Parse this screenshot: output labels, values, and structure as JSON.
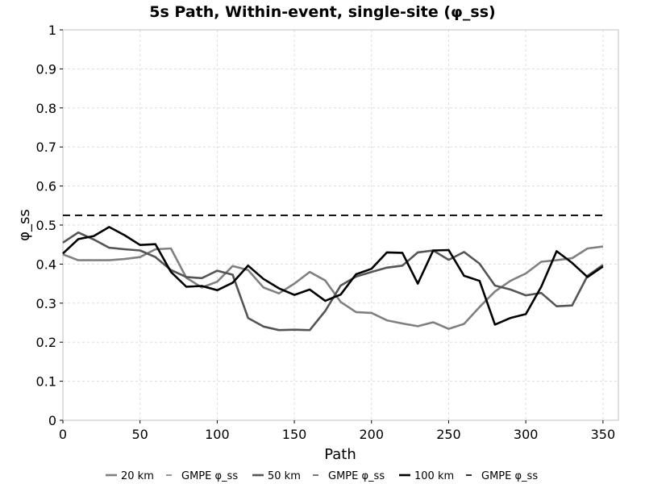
{
  "chart_data": {
    "type": "line",
    "title": "5s Path, Within-event, single-site (φ_ss)",
    "xlabel": "Path",
    "ylabel": "φ_ss",
    "xlim": [
      0,
      360
    ],
    "ylim": [
      0,
      1
    ],
    "xticks": [
      "0",
      "50",
      "100",
      "150",
      "200",
      "250",
      "300",
      "350"
    ],
    "yticks": [
      "0",
      "0.1",
      "0.2",
      "0.3",
      "0.4",
      "0.5",
      "0.6",
      "0.7",
      "0.8",
      "0.9",
      "1"
    ],
    "grid": true,
    "legend_position": "bottom",
    "x": [
      0,
      10,
      20,
      30,
      40,
      50,
      60,
      70,
      80,
      90,
      100,
      110,
      120,
      130,
      140,
      150,
      160,
      170,
      180,
      190,
      200,
      210,
      220,
      230,
      240,
      250,
      260,
      270,
      280,
      290,
      300,
      310,
      320,
      330,
      340,
      350
    ],
    "series": [
      {
        "name": "20 km",
        "color": "#808080",
        "style": "solid",
        "values": [
          0.425,
          0.41,
          0.41,
          0.41,
          0.413,
          0.418,
          0.438,
          0.44,
          0.365,
          0.34,
          0.355,
          0.395,
          0.385,
          0.34,
          0.325,
          0.35,
          0.38,
          0.358,
          0.303,
          0.277,
          0.275,
          0.256,
          0.248,
          0.241,
          0.251,
          0.234,
          0.247,
          0.29,
          0.33,
          0.357,
          0.376,
          0.406,
          0.41,
          0.415,
          0.44,
          0.445
        ]
      },
      {
        "name": "GMPE φ_ss",
        "color": "#808080",
        "style": "dashed",
        "values": [
          0.525,
          0.525,
          0.525,
          0.525,
          0.525,
          0.525,
          0.525,
          0.525,
          0.525,
          0.525,
          0.525,
          0.525,
          0.525,
          0.525,
          0.525,
          0.525,
          0.525,
          0.525,
          0.525,
          0.525,
          0.525,
          0.525,
          0.525,
          0.525,
          0.525,
          0.525,
          0.525,
          0.525,
          0.525,
          0.525,
          0.525,
          0.525,
          0.525,
          0.525,
          0.525,
          0.525
        ]
      },
      {
        "name": "50 km",
        "color": "#555555",
        "style": "solid",
        "values": [
          0.455,
          0.481,
          0.463,
          0.442,
          0.438,
          0.435,
          0.418,
          0.385,
          0.367,
          0.364,
          0.383,
          0.373,
          0.262,
          0.24,
          0.231,
          0.232,
          0.231,
          0.28,
          0.345,
          0.368,
          0.38,
          0.391,
          0.396,
          0.43,
          0.435,
          0.411,
          0.431,
          0.401,
          0.345,
          0.335,
          0.32,
          0.326,
          0.292,
          0.294,
          0.37,
          0.398
        ]
      },
      {
        "name": "GMPE φ_ss",
        "color": "#555555",
        "style": "dashed",
        "values": [
          0.525,
          0.525,
          0.525,
          0.525,
          0.525,
          0.525,
          0.525,
          0.525,
          0.525,
          0.525,
          0.525,
          0.525,
          0.525,
          0.525,
          0.525,
          0.525,
          0.525,
          0.525,
          0.525,
          0.525,
          0.525,
          0.525,
          0.525,
          0.525,
          0.525,
          0.525,
          0.525,
          0.525,
          0.525,
          0.525,
          0.525,
          0.525,
          0.525,
          0.525,
          0.525,
          0.525
        ]
      },
      {
        "name": "100 km",
        "color": "#000000",
        "style": "solid",
        "values": [
          0.427,
          0.464,
          0.472,
          0.495,
          0.474,
          0.449,
          0.451,
          0.38,
          0.342,
          0.344,
          0.333,
          0.352,
          0.396,
          0.362,
          0.338,
          0.321,
          0.335,
          0.306,
          0.322,
          0.374,
          0.388,
          0.43,
          0.429,
          0.35,
          0.435,
          0.436,
          0.37,
          0.357,
          0.245,
          0.262,
          0.272,
          0.342,
          0.433,
          0.403,
          0.367,
          0.394
        ]
      },
      {
        "name": "GMPE φ_ss",
        "color": "#000000",
        "style": "dashed",
        "values": [
          0.525,
          0.525,
          0.525,
          0.525,
          0.525,
          0.525,
          0.525,
          0.525,
          0.525,
          0.525,
          0.525,
          0.525,
          0.525,
          0.525,
          0.525,
          0.525,
          0.525,
          0.525,
          0.525,
          0.525,
          0.525,
          0.525,
          0.525,
          0.525,
          0.525,
          0.525,
          0.525,
          0.525,
          0.525,
          0.525,
          0.525,
          0.525,
          0.525,
          0.525,
          0.525,
          0.525
        ]
      }
    ]
  }
}
